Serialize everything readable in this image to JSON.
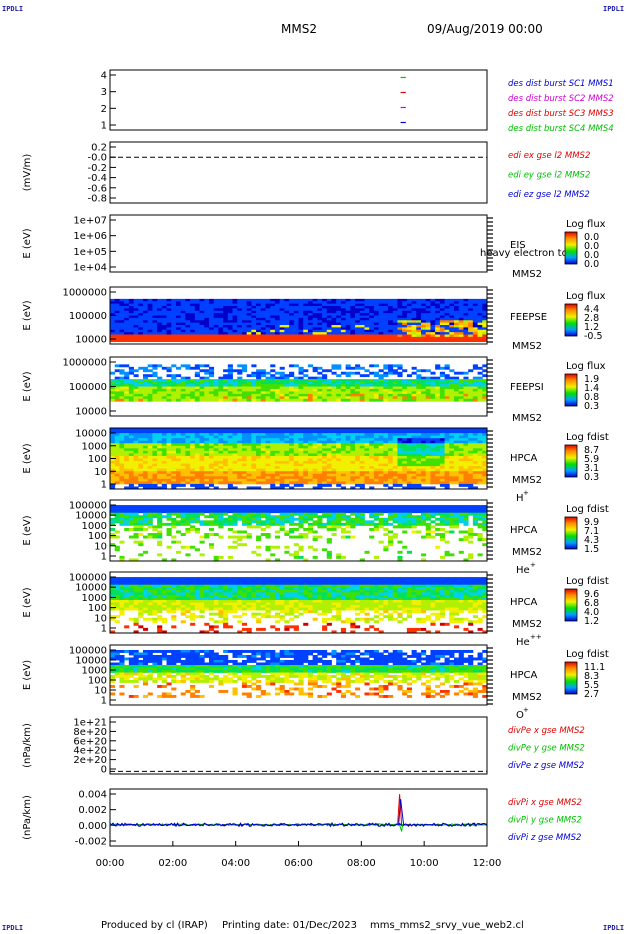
{
  "header": {
    "corner_tl": "IPDLI",
    "corner_tr": "IPDLI",
    "corner_bl": "IPDLI",
    "corner_br": "IPDLI",
    "spacecraft": "MMS2",
    "date": "09/Aug/2019 00:00"
  },
  "footer": {
    "producer": "Produced by cl (IRAP)",
    "printing_date": "Printing date: 01/Dec/2023",
    "filename": "mms_mms2_srvy_vue_web2.cl"
  },
  "colors": {
    "red": "#e00000",
    "green": "#00c000",
    "blue": "#0000d0",
    "magenta": "#d000d0"
  },
  "chart_data": [
    {
      "type": "line",
      "title": "",
      "ylabel": "",
      "yticks": [
        "4",
        "3",
        "2",
        "1"
      ],
      "ylim": [
        0.5,
        4.5
      ],
      "legend": [
        {
          "name": "des dist burst SC1 MMS1",
          "color": "#0000d0"
        },
        {
          "name": "des dist burst SC2 MMS2",
          "color": "#d000d0"
        },
        {
          "name": "des dist burst SC3 MMS3",
          "color": "#e00000"
        },
        {
          "name": "des dist burst SC4 MMS4",
          "color": "#00c000"
        }
      ],
      "series": [
        {
          "level": 4,
          "x": [
            "09:15",
            "09:25"
          ],
          "color": "#00c000"
        },
        {
          "level": 3,
          "x": [
            "09:15",
            "09:25"
          ],
          "color": "#e00000"
        },
        {
          "level": 2,
          "x": [
            "09:15",
            "09:25"
          ],
          "color": "#d000d0"
        },
        {
          "level": 1,
          "x": [
            "09:15",
            "09:25"
          ],
          "color": "#0000d0"
        }
      ]
    },
    {
      "type": "line",
      "ylabel": "(mV/m)",
      "yticks": [
        "0.2",
        "-0.0",
        "-0.2",
        "-0.4",
        "-0.6",
        "-0.8"
      ],
      "ylim": [
        -0.9,
        0.3
      ],
      "legend": [
        {
          "name": "edi ex gse l2 MMS2",
          "color": "#e00000"
        },
        {
          "name": "edi ey gse l2 MMS2",
          "color": "#00c000"
        },
        {
          "name": "edi ez gse l2 MMS2",
          "color": "#0000d0"
        }
      ],
      "reference_line": 0
    },
    {
      "type": "heatmap",
      "ylabel": "E (eV)",
      "yticks": [
        "1e+07",
        "1e+06",
        "1e+05",
        "1e+04"
      ],
      "instrument": "EIS",
      "spacecraft": "MMS2",
      "overlay_text": "heavy electron to",
      "colorbar_title": "Log flux",
      "colorbar_ticks": [
        "0.0",
        "0.0",
        "0.0",
        "0.0"
      ]
    },
    {
      "type": "heatmap",
      "ylabel": "E (eV)",
      "yticks": [
        "1000000",
        "100000",
        "10000"
      ],
      "instrument": "FEEPSE",
      "spacecraft": "MMS2",
      "colorbar_title": "Log flux",
      "colorbar_ticks": [
        "4.4",
        "2.8",
        "1.2",
        "-0.5"
      ]
    },
    {
      "type": "heatmap",
      "ylabel": "E (eV)",
      "yticks": [
        "1000000",
        "100000",
        "10000"
      ],
      "instrument": "FEEPSI",
      "spacecraft": "MMS2",
      "colorbar_title": "Log flux",
      "colorbar_ticks": [
        "1.9",
        "1.4",
        "0.8",
        "0.3"
      ]
    },
    {
      "type": "heatmap",
      "ylabel": "E (eV)",
      "yticks": [
        "10000",
        "1000",
        "100",
        "10",
        "1"
      ],
      "instrument": "HPCA",
      "spacecraft": "MMS2",
      "species": "H",
      "species_charge": "+",
      "colorbar_title": "Log fdist",
      "colorbar_ticks": [
        "8.7",
        "5.9",
        "3.1",
        "0.3"
      ]
    },
    {
      "type": "heatmap",
      "ylabel": "E (eV)",
      "yticks": [
        "100000",
        "10000",
        "1000",
        "100",
        "10",
        "1"
      ],
      "instrument": "HPCA",
      "spacecraft": "MMS2",
      "species": "He",
      "species_charge": "+",
      "colorbar_title": "Log fdist",
      "colorbar_ticks": [
        "9.9",
        "7.1",
        "4.3",
        "1.5"
      ]
    },
    {
      "type": "heatmap",
      "ylabel": "E (eV)",
      "yticks": [
        "100000",
        "10000",
        "1000",
        "100",
        "10",
        "1"
      ],
      "instrument": "HPCA",
      "spacecraft": "MMS2",
      "species": "He",
      "species_charge": "++",
      "colorbar_title": "Log fdist",
      "colorbar_ticks": [
        "9.6",
        "6.8",
        "4.0",
        "1.2"
      ]
    },
    {
      "type": "heatmap",
      "ylabel": "E (eV)",
      "yticks": [
        "100000",
        "10000",
        "1000",
        "100",
        "10",
        "1"
      ],
      "instrument": "HPCA",
      "spacecraft": "MMS2",
      "species": "O",
      "species_charge": "+",
      "colorbar_title": "Log fdist",
      "colorbar_ticks": [
        "11.1",
        "8.3",
        "5.5",
        "2.7"
      ]
    },
    {
      "type": "line",
      "ylabel": "(nPa/km)",
      "yticks": [
        "1e+21",
        "8e+20",
        "6e+20",
        "4e+20",
        "2e+20",
        "0"
      ],
      "ylim": [
        -5e+19,
        1.05e+21
      ],
      "legend": [
        {
          "name": "divPe x gse MMS2",
          "color": "#e00000"
        },
        {
          "name": "divPe y gse MMS2",
          "color": "#00c000"
        },
        {
          "name": "divPe z gse MMS2",
          "color": "#0000d0"
        }
      ],
      "reference_line": 0
    },
    {
      "type": "line",
      "ylabel": "(nPa/km)",
      "yticks": [
        "0.004",
        "0.002",
        "0.000",
        "-0.002"
      ],
      "ylim": [
        -0.0025,
        0.0042
      ],
      "legend": [
        {
          "name": "divPi x gse MMS2",
          "color": "#e00000"
        },
        {
          "name": "divPi y gse MMS2",
          "color": "#00c000"
        },
        {
          "name": "divPi z gse MMS2",
          "color": "#0000d0"
        }
      ],
      "reference_line": 0,
      "spike": {
        "x": "09:15",
        "x_peak": 0.0036,
        "y_min": -0.0008,
        "z_peak": 0.003
      }
    }
  ],
  "xaxis": {
    "ticks": [
      "00:00",
      "02:00",
      "04:00",
      "06:00",
      "08:00",
      "10:00",
      "12:00"
    ],
    "range": [
      "00:00",
      "12:00"
    ]
  }
}
